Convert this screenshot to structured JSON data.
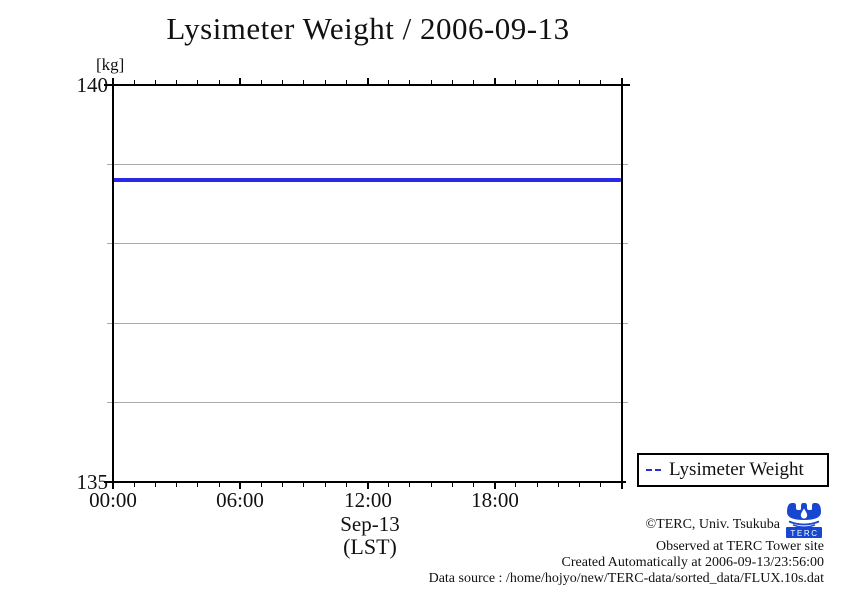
{
  "title": "Lysimeter Weight / 2006-09-13",
  "y_axis": {
    "unit": "[kg]",
    "max_label": "140",
    "min_label": "135"
  },
  "x_axis": {
    "ticks": [
      "00:00",
      "06:00",
      "12:00",
      "18:00"
    ],
    "date": "Sep-13",
    "timezone": "(LST)"
  },
  "legend": {
    "label": "Lysimeter Weight"
  },
  "footer": {
    "copyright": "©TERC, Univ. Tsukuba",
    "observed": "Observed at TERC Tower site",
    "created": "Created Automatically at 2006-09-13/23:56:00",
    "datasource": "Data source : /home/hojyo/new/TERC-data/sorted_data/FLUX.10s.dat",
    "logo_text": "TERC"
  },
  "colors": {
    "series_blue": "#2a2ae6",
    "grid_gray": "#ababab",
    "logo_blue": "#1747d0"
  },
  "chart_data": {
    "type": "line",
    "title": "Lysimeter Weight / 2006-09-13",
    "xlabel": "Sep-13 (LST)",
    "ylabel": "kg",
    "x_hours_range": [
      0,
      24
    ],
    "x_major_tick_hours": [
      0,
      6,
      12,
      18,
      24
    ],
    "x_minor_tick_every_hours": 1,
    "x_tick_labels": [
      "00:00",
      "06:00",
      "12:00",
      "18:00"
    ],
    "ylim": [
      135,
      140
    ],
    "y_labeled_ticks": [
      140,
      135
    ],
    "y_gridlines": [
      139,
      138,
      137,
      136
    ],
    "grid": "horizontal only",
    "legend_position": "outside bottom-right",
    "legend_sample_style": "dashed",
    "series": [
      {
        "name": "Lysimeter Weight",
        "color": "#2a2ae6",
        "x_hours": [
          0,
          24
        ],
        "y_kg": [
          138.8,
          138.8
        ]
      }
    ]
  }
}
